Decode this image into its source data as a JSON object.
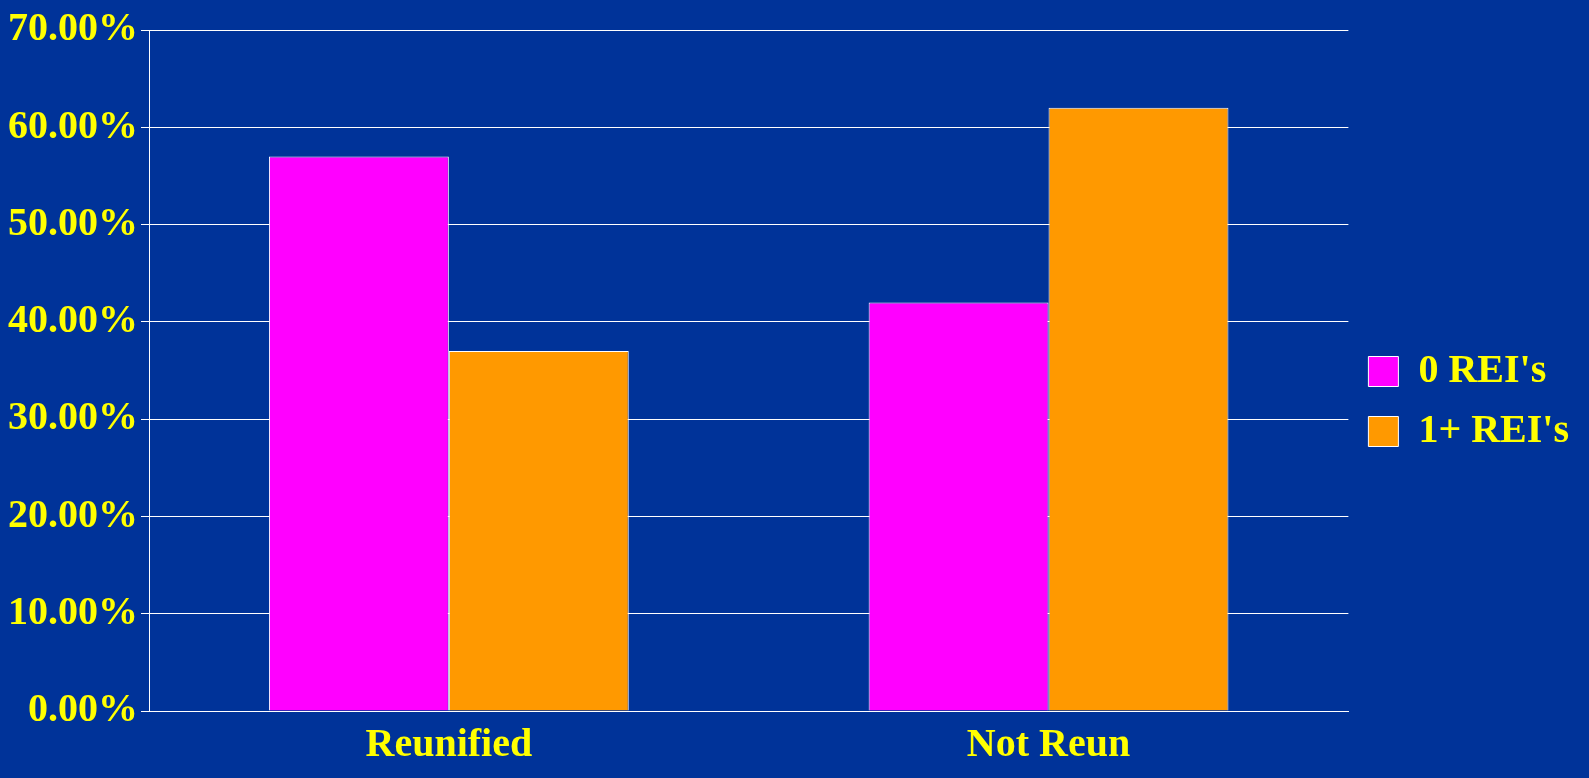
{
  "chart_data": {
    "type": "bar",
    "categories": [
      "Reunified",
      "Not Reun"
    ],
    "series": [
      {
        "name": "0 REI's",
        "color": "#ff00ff",
        "values": [
          57,
          42
        ]
      },
      {
        "name": "1+ REI's",
        "color": "#ff9900",
        "values": [
          37,
          62
        ]
      }
    ],
    "ylim": [
      0,
      70
    ],
    "yticks": [
      {
        "value": 0,
        "label": "0.00%"
      },
      {
        "value": 10,
        "label": "10.00%"
      },
      {
        "value": 20,
        "label": "20.00%"
      },
      {
        "value": 30,
        "label": "30.00%"
      },
      {
        "value": 40,
        "label": "40.00%"
      },
      {
        "value": 50,
        "label": "50.00%"
      },
      {
        "value": 60,
        "label": "60.00%"
      },
      {
        "value": 70,
        "label": "70.00%"
      }
    ],
    "grid": "y",
    "legend": "right"
  }
}
